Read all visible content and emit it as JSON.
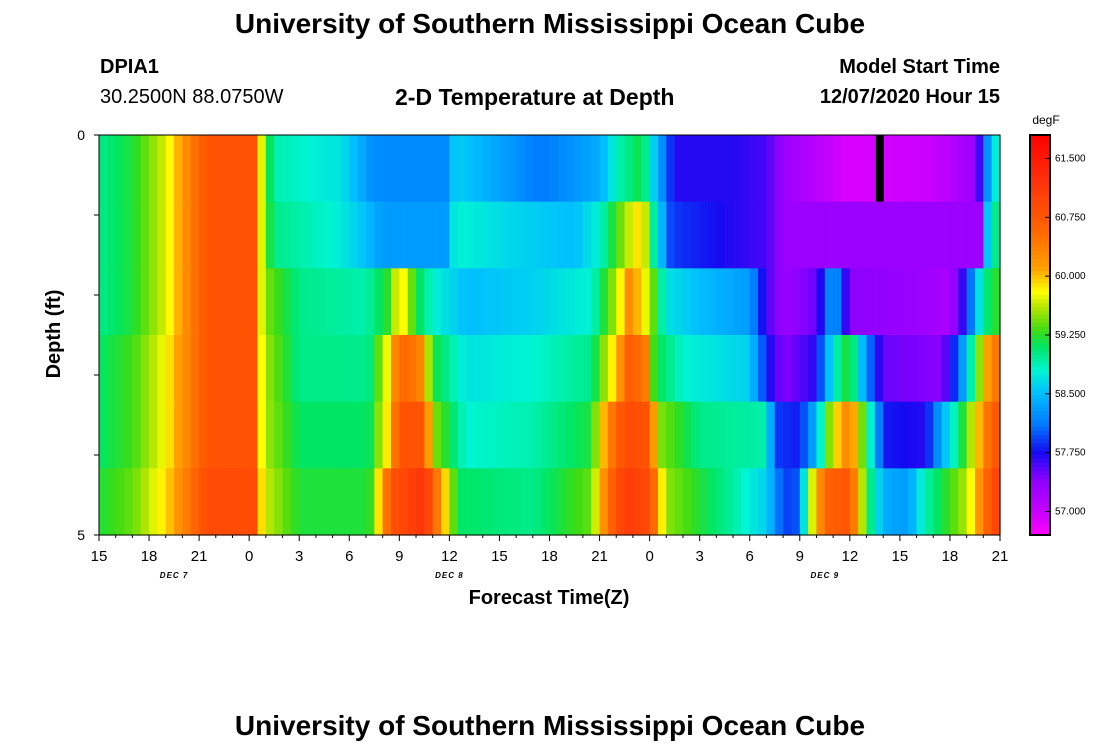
{
  "header": {
    "title": "University of Southern Mississippi Ocean Cube",
    "station_id": "DPIA1",
    "station_coords": "30.2500N 88.0750W",
    "subtitle": "2-D Temperature at Depth",
    "model_start_label": "Model Start Time",
    "model_start_value": "12/07/2020 Hour 15"
  },
  "footer": {
    "title": "University of Southern Mississippi Ocean Cube"
  },
  "chart_data": {
    "type": "heatmap",
    "title": "2-D Temperature at Depth",
    "xlabel": "Forecast Time(Z)",
    "ylabel": "Depth (ft)",
    "x_tick_labels": [
      "15",
      "18",
      "21",
      "0",
      "3",
      "6",
      "9",
      "12",
      "15",
      "18",
      "21",
      "0",
      "3",
      "6",
      "9",
      "12",
      "15",
      "18",
      "21"
    ],
    "x_hours_from_start": [
      0,
      3,
      6,
      9,
      12,
      15,
      18,
      21,
      24,
      27,
      30,
      33,
      36,
      39,
      42,
      45,
      48,
      51,
      54
    ],
    "date_labels": [
      {
        "text": "DEC 7",
        "hour": 4.5
      },
      {
        "text": "DEC 8",
        "hour": 21
      },
      {
        "text": "DEC 9",
        "hour": 43.5
      }
    ],
    "y_tick_labels": [
      "0",
      "5"
    ],
    "y_range_ft": [
      0,
      5
    ],
    "depth_layers_ft": [
      0,
      1,
      2,
      3,
      4,
      5
    ],
    "colorbar": {
      "unit": "degF",
      "labels": [
        "61.500",
        "60.750",
        "60.000",
        "59.250",
        "58.500",
        "57.750",
        "57.000"
      ],
      "range": [
        56.7,
        61.8
      ]
    },
    "columns_per_hour": 2,
    "layer_anchors": [
      [
        [
          0,
          59.0
        ],
        [
          2,
          59.2
        ],
        [
          4,
          59.7
        ],
        [
          5.5,
          60.4
        ],
        [
          6.5,
          60.8
        ],
        [
          9.5,
          60.8
        ],
        [
          9.8,
          59.5
        ],
        [
          10.5,
          58.9
        ],
        [
          14.5,
          58.7
        ],
        [
          15.3,
          58.5
        ],
        [
          16.5,
          58.2
        ],
        [
          21,
          58.2
        ],
        [
          21.3,
          58.6
        ],
        [
          23.5,
          58.4
        ],
        [
          26.5,
          58.1
        ],
        [
          30,
          58.4
        ],
        [
          31.2,
          58.9
        ],
        [
          32.5,
          59.2
        ],
        [
          33.5,
          58.4
        ],
        [
          34.5,
          57.7
        ],
        [
          38,
          57.7
        ],
        [
          40,
          57.6
        ],
        [
          41,
          57.3
        ],
        [
          45,
          56.9
        ],
        [
          50,
          57.0
        ],
        [
          52.5,
          57.3
        ],
        [
          53.2,
          58.2
        ],
        [
          54,
          59.0
        ]
      ],
      [
        [
          0,
          59.0
        ],
        [
          2,
          59.2
        ],
        [
          4,
          59.7
        ],
        [
          5.5,
          60.4
        ],
        [
          6.5,
          60.8
        ],
        [
          9.5,
          60.8
        ],
        [
          9.8,
          59.5
        ],
        [
          10.5,
          59.0
        ],
        [
          14,
          58.8
        ],
        [
          15.5,
          58.6
        ],
        [
          17,
          58.3
        ],
        [
          21,
          58.3
        ],
        [
          21.3,
          58.8
        ],
        [
          25.5,
          58.6
        ],
        [
          28.5,
          58.5
        ],
        [
          30,
          58.8
        ],
        [
          31,
          59.3
        ],
        [
          32.5,
          60.0
        ],
        [
          33.2,
          59.0
        ],
        [
          34.3,
          57.9
        ],
        [
          38,
          57.7
        ],
        [
          40,
          57.6
        ],
        [
          41,
          57.3
        ],
        [
          53,
          57.3
        ],
        [
          53.3,
          58.8
        ],
        [
          54,
          59.1
        ]
      ],
      [
        [
          0,
          59.0
        ],
        [
          2,
          59.2
        ],
        [
          4,
          59.7
        ],
        [
          5.5,
          60.4
        ],
        [
          6.5,
          60.8
        ],
        [
          9.5,
          60.8
        ],
        [
          9.8,
          59.5
        ],
        [
          12,
          59.0
        ],
        [
          16,
          58.9
        ],
        [
          17.5,
          59.3
        ],
        [
          18,
          60.0
        ],
        [
          19,
          59.2
        ],
        [
          20,
          58.8
        ],
        [
          22,
          58.5
        ],
        [
          26,
          58.6
        ],
        [
          29.5,
          58.8
        ],
        [
          31,
          59.6
        ],
        [
          31.8,
          60.3
        ],
        [
          33,
          59.6
        ],
        [
          34,
          58.7
        ],
        [
          36,
          58.5
        ],
        [
          39,
          58.3
        ],
        [
          40,
          57.6
        ],
        [
          41,
          57.3
        ],
        [
          43,
          57.5
        ],
        [
          44,
          58.4
        ],
        [
          45,
          57.4
        ],
        [
          49,
          57.3
        ],
        [
          51,
          57.2
        ],
        [
          52,
          57.8
        ],
        [
          53,
          59.0
        ],
        [
          54,
          59.3
        ]
      ],
      [
        [
          0,
          59.1
        ],
        [
          2,
          59.3
        ],
        [
          4,
          59.8
        ],
        [
          5.5,
          60.4
        ],
        [
          6.5,
          60.8
        ],
        [
          9.5,
          60.8
        ],
        [
          9.8,
          59.6
        ],
        [
          12,
          59.0
        ],
        [
          16.2,
          59.0
        ],
        [
          17.2,
          59.7
        ],
        [
          18,
          60.6
        ],
        [
          19.2,
          60.4
        ],
        [
          20,
          59.2
        ],
        [
          22,
          58.7
        ],
        [
          26,
          58.8
        ],
        [
          29.5,
          59.0
        ],
        [
          31,
          60.0
        ],
        [
          31.8,
          60.7
        ],
        [
          32.8,
          60.4
        ],
        [
          33.3,
          59.2
        ],
        [
          35,
          58.8
        ],
        [
          39,
          58.6
        ],
        [
          40,
          57.8
        ],
        [
          41,
          57.4
        ],
        [
          43,
          57.7
        ],
        [
          44,
          58.8
        ],
        [
          45,
          59.3
        ],
        [
          46,
          58.2
        ],
        [
          47,
          57.5
        ],
        [
          50.5,
          57.4
        ],
        [
          51.5,
          58.0
        ],
        [
          52.5,
          59.2
        ],
        [
          53.5,
          60.4
        ],
        [
          54,
          60.5
        ]
      ],
      [
        [
          0,
          59.1
        ],
        [
          2,
          59.3
        ],
        [
          4,
          59.8
        ],
        [
          5.5,
          60.4
        ],
        [
          6.5,
          60.8
        ],
        [
          9.5,
          60.8
        ],
        [
          9.8,
          59.6
        ],
        [
          12,
          59.1
        ],
        [
          16.2,
          59.1
        ],
        [
          17.2,
          59.8
        ],
        [
          18,
          60.8
        ],
        [
          19.5,
          60.8
        ],
        [
          20,
          59.5
        ],
        [
          22,
          58.8
        ],
        [
          26,
          58.9
        ],
        [
          29.5,
          59.2
        ],
        [
          30.5,
          60.3
        ],
        [
          31.5,
          60.9
        ],
        [
          33,
          60.8
        ],
        [
          33.5,
          59.5
        ],
        [
          36,
          59.0
        ],
        [
          40,
          58.9
        ],
        [
          40.5,
          57.9
        ],
        [
          42,
          57.8
        ],
        [
          43,
          58.5
        ],
        [
          44,
          59.8
        ],
        [
          45,
          60.4
        ],
        [
          46,
          59.1
        ],
        [
          47,
          57.8
        ],
        [
          49.5,
          57.7
        ],
        [
          50.5,
          58.4
        ],
        [
          51.5,
          59.0
        ],
        [
          52.5,
          59.8
        ],
        [
          53.5,
          60.7
        ],
        [
          54,
          60.8
        ]
      ],
      [
        [
          0,
          59.2
        ],
        [
          2,
          59.4
        ],
        [
          4,
          59.9
        ],
        [
          5.5,
          60.5
        ],
        [
          6.5,
          60.9
        ],
        [
          9.5,
          60.9
        ],
        [
          9.8,
          59.7
        ],
        [
          12,
          59.2
        ],
        [
          16.2,
          59.2
        ],
        [
          17,
          60.2
        ],
        [
          17.5,
          60.8
        ],
        [
          19.5,
          61.2
        ],
        [
          20.5,
          60.2
        ],
        [
          21.5,
          59.1
        ],
        [
          26,
          59.0
        ],
        [
          29.5,
          59.4
        ],
        [
          30.5,
          60.5
        ],
        [
          31.5,
          61.1
        ],
        [
          33,
          60.9
        ],
        [
          34,
          59.5
        ],
        [
          37.5,
          59.0
        ],
        [
          40,
          58.6
        ],
        [
          41,
          57.9
        ],
        [
          42,
          58.0
        ],
        [
          42.5,
          59.4
        ],
        [
          43.5,
          60.6
        ],
        [
          45,
          60.8
        ],
        [
          46,
          59.2
        ],
        [
          47,
          58.4
        ],
        [
          48.5,
          58.3
        ],
        [
          49.5,
          58.9
        ],
        [
          51,
          59.3
        ],
        [
          52,
          59.6
        ],
        [
          53,
          60.4
        ],
        [
          53.5,
          60.9
        ],
        [
          54,
          61.0
        ]
      ]
    ],
    "annotation": {
      "type": "black-bar",
      "hour": 46.8,
      "layer": 0
    }
  }
}
